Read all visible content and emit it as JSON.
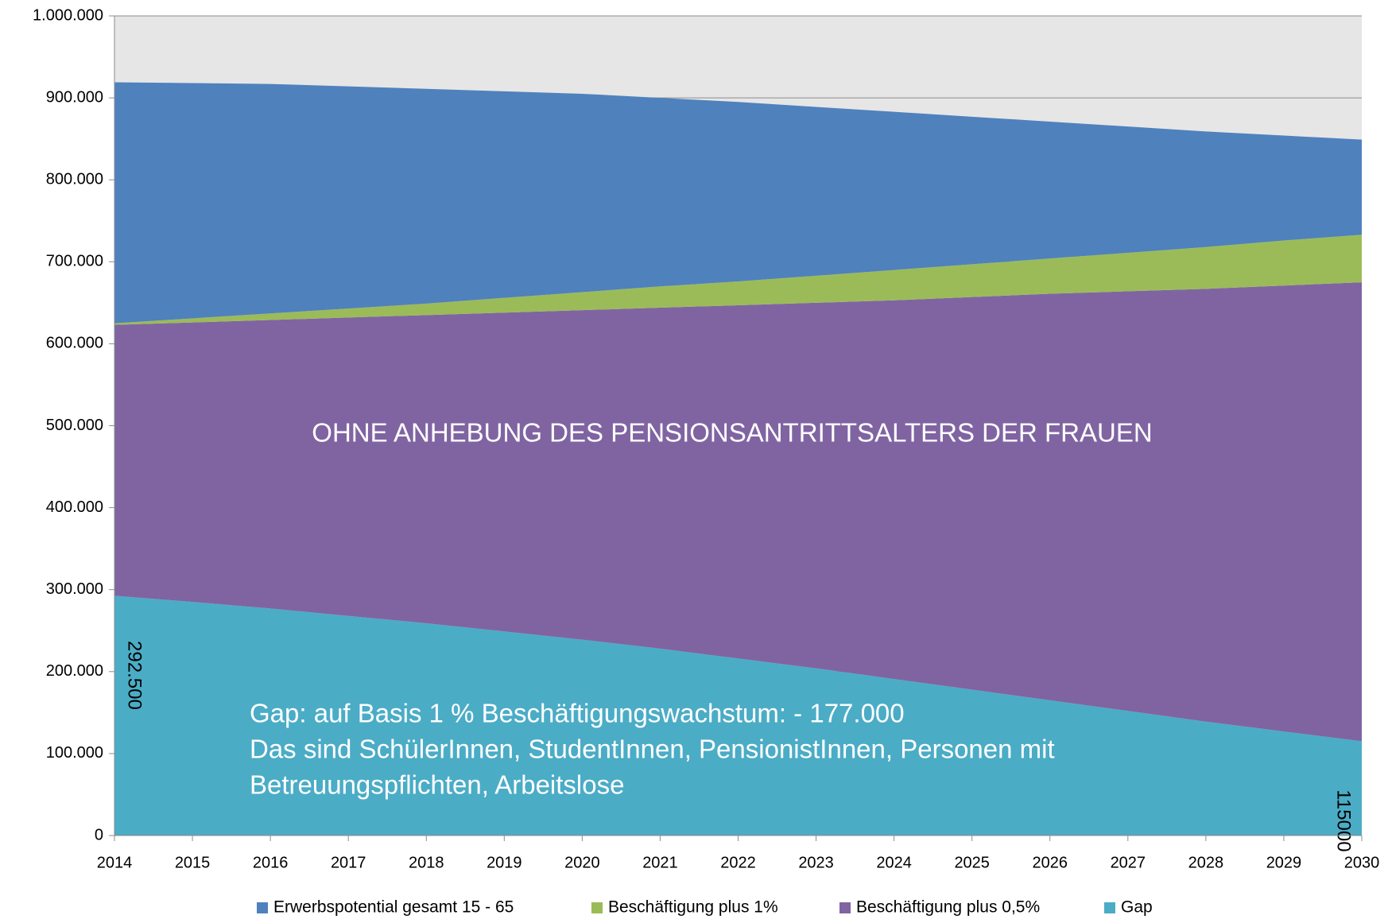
{
  "chart_data": {
    "type": "stacked_area",
    "x": [
      2014,
      2015,
      2016,
      2017,
      2018,
      2019,
      2020,
      2021,
      2022,
      2023,
      2024,
      2025,
      2026,
      2027,
      2028,
      2029,
      2030
    ],
    "xlim": [
      2014,
      2030
    ],
    "xticks": [
      2014,
      2015,
      2016,
      2017,
      2018,
      2019,
      2020,
      2021,
      2022,
      2023,
      2024,
      2025,
      2026,
      2027,
      2028,
      2029,
      2030
    ],
    "ylim": [
      0,
      1000000
    ],
    "yticks": [
      0,
      {
        "value": 100000,
        "label": "100.000"
      },
      {
        "value": 200000,
        "label": "200.000"
      },
      {
        "value": 300000,
        "label": "300.000"
      },
      {
        "value": 400000,
        "label": "400.000"
      },
      {
        "value": 500000,
        "label": "500.000"
      },
      {
        "value": 600000,
        "label": "600.000"
      },
      {
        "value": 700000,
        "label": "700.000"
      },
      {
        "value": 800000,
        "label": "800.000"
      },
      {
        "value": 900000,
        "label": "900.000"
      },
      {
        "value": 1000000,
        "label": "1.000.000"
      }
    ],
    "grid": true,
    "legend": "bottom",
    "series": [
      {
        "name": "Gap",
        "color": "#4bacc6",
        "values": [
          292500,
          285000,
          277000,
          268000,
          259000,
          249000,
          239000,
          228000,
          216000,
          204000,
          191000,
          178000,
          165000,
          152000,
          139000,
          127000,
          115000
        ],
        "value_labels": [
          "292.500",
          null,
          null,
          null,
          null,
          null,
          null,
          null,
          null,
          null,
          null,
          null,
          null,
          null,
          null,
          null,
          "115000"
        ]
      },
      {
        "name": "Beschäftigung plus 0,5%",
        "color": "#8064a2",
        "values": [
          330500,
          341000,
          352000,
          364000,
          376000,
          389000,
          402000,
          416000,
          431000,
          446000,
          462000,
          479000,
          496000,
          512000,
          528000,
          544000,
          560000
        ]
      },
      {
        "name": "Beschäftigung plus 1%",
        "color": "#9bbb59",
        "values": [
          2000,
          5000,
          8000,
          11000,
          14000,
          18000,
          22000,
          26000,
          29000,
          33000,
          37000,
          40000,
          43000,
          47000,
          51000,
          55000,
          58000
        ]
      },
      {
        "name": "Erwerbspotential gesamt 15 - 65",
        "color": "#4f81bd",
        "values": [
          294000,
          287000,
          280000,
          271000,
          262000,
          252000,
          242000,
          230000,
          219000,
          206000,
          193000,
          180000,
          167000,
          154000,
          141000,
          128000,
          116000
        ]
      }
    ],
    "annotations": [
      "OHNE ANHEBUNG DES PENSIONSANTRITTSALTERS DER FRAUEN",
      "Gap: auf Basis 1 % Beschäftigungswachstum: - 177.000",
      "Das sind SchülerInnen, StudentInnen, PensionistInnen, Personen mit",
      "Betreuungspflichten, Arbeitslose"
    ]
  }
}
